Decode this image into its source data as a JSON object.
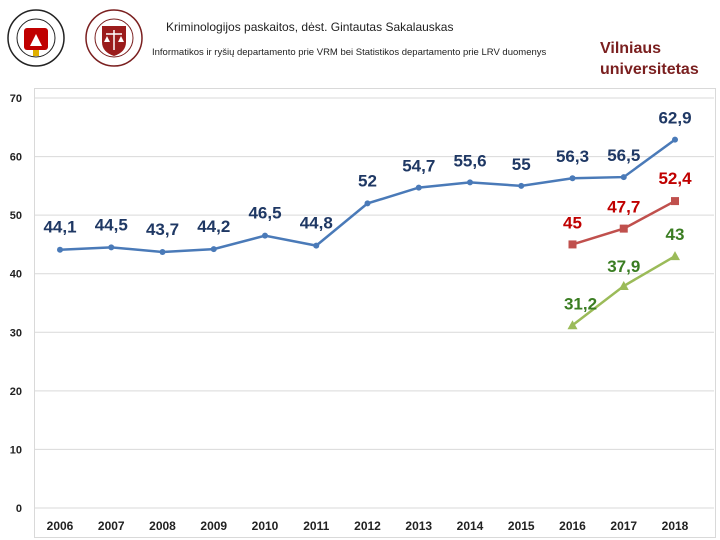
{
  "header": {
    "course_title": "Kriminologijos paskaitos, dėst. Gintautas Sakalauskas",
    "source_note": "Informatikos ir ryšių departamento prie VRM bei Statistikos departamento prie LRV duomenys",
    "university_line1": "Vilniaus",
    "university_line2": "universitetas"
  },
  "colors": {
    "blue": "#4a7ab8",
    "red": "#c0504d",
    "green": "#9bbb59",
    "label_blue": "#1f3864",
    "label_red": "#c00000",
    "label_green": "#3a7d22",
    "grid": "#d9d9d9",
    "uni": "#7a1f1f"
  },
  "chart_data": {
    "type": "line",
    "title": "",
    "xlabel": "",
    "ylabel": "",
    "categories": [
      "2006",
      "2007",
      "2008",
      "2009",
      "2010",
      "2011",
      "2012",
      "2013",
      "2014",
      "2015",
      "2016",
      "2017",
      "2018"
    ],
    "ylim": [
      0,
      70
    ],
    "yticks": [
      0,
      10,
      20,
      30,
      40,
      50,
      60,
      70
    ],
    "grid": true,
    "series": [
      {
        "name": "blue",
        "marker": "circle",
        "color": "#4a7ab8",
        "label_color": "#1f3864",
        "values": [
          44.1,
          44.5,
          43.7,
          44.2,
          46.5,
          44.8,
          52,
          54.7,
          55.6,
          55,
          56.3,
          56.5,
          62.9
        ],
        "labels": [
          "44,1",
          "44,5",
          "43,7",
          "44,2",
          "46,5",
          "44,8",
          "52",
          "54,7",
          "55,6",
          "55",
          "56,3",
          "56,5",
          "62,9"
        ]
      },
      {
        "name": "red",
        "marker": "square",
        "color": "#c0504d",
        "label_color": "#c00000",
        "values": [
          null,
          null,
          null,
          null,
          null,
          null,
          null,
          null,
          null,
          null,
          45,
          47.7,
          52.4
        ],
        "labels": [
          "",
          "",
          "",
          "",
          "",
          "",
          "",
          "",
          "",
          "",
          "45",
          "47,7",
          "52,4"
        ]
      },
      {
        "name": "green",
        "marker": "triangle",
        "color": "#9bbb59",
        "label_color": "#3a7d22",
        "values": [
          null,
          null,
          null,
          null,
          null,
          null,
          null,
          null,
          null,
          null,
          31.2,
          37.9,
          43
        ],
        "labels": [
          "",
          "",
          "",
          "",
          "",
          "",
          "",
          "",
          "",
          "",
          "31,2",
          "37,9",
          "43"
        ]
      }
    ]
  }
}
